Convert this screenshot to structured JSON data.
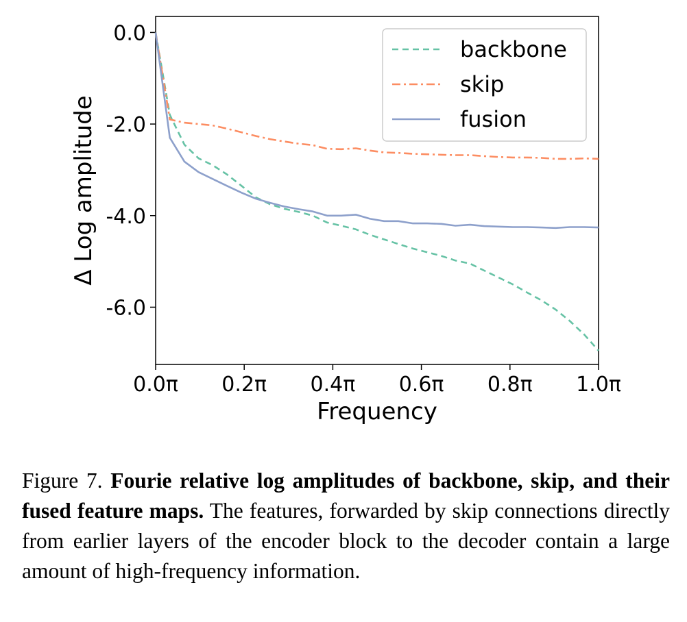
{
  "chart_data": {
    "type": "line",
    "xlabel": "Frequency",
    "ylabel": "Δ Log amplitude",
    "xlim": [
      0.0,
      1.0
    ],
    "ylim": [
      -7.25,
      0.35
    ],
    "x_ticks": [
      {
        "value": 0.0,
        "label": "0.0π"
      },
      {
        "value": 0.2,
        "label": "0.2π"
      },
      {
        "value": 0.4,
        "label": "0.4π"
      },
      {
        "value": 0.6,
        "label": "0.6π"
      },
      {
        "value": 0.8,
        "label": "0.8π"
      },
      {
        "value": 1.0,
        "label": "1.0π"
      }
    ],
    "y_ticks": [
      {
        "value": 0.0,
        "label": "0.0"
      },
      {
        "value": -2.0,
        "label": "-2.0"
      },
      {
        "value": -4.0,
        "label": "-4.0"
      },
      {
        "value": -6.0,
        "label": "-6.0"
      }
    ],
    "grid": false,
    "legend_position": "top-right",
    "x": [
      0.0,
      0.032,
      0.065,
      0.097,
      0.129,
      0.161,
      0.194,
      0.226,
      0.258,
      0.29,
      0.323,
      0.355,
      0.387,
      0.419,
      0.452,
      0.484,
      0.516,
      0.548,
      0.581,
      0.613,
      0.645,
      0.677,
      0.71,
      0.742,
      0.774,
      0.806,
      0.839,
      0.871,
      0.903,
      0.935,
      0.968,
      1.0
    ],
    "series": [
      {
        "name": "backbone",
        "color": "#66c2a5",
        "style": "dashed",
        "values": [
          0.0,
          -1.8,
          -2.45,
          -2.75,
          -2.9,
          -3.1,
          -3.35,
          -3.6,
          -3.75,
          -3.85,
          -3.92,
          -4.0,
          -4.15,
          -4.22,
          -4.3,
          -4.42,
          -4.52,
          -4.62,
          -4.72,
          -4.8,
          -4.88,
          -4.98,
          -5.05,
          -5.2,
          -5.35,
          -5.5,
          -5.68,
          -5.85,
          -6.05,
          -6.3,
          -6.6,
          -6.95
        ]
      },
      {
        "name": "skip",
        "color": "#fc8d62",
        "style": "dashdot",
        "values": [
          0.0,
          -1.9,
          -1.97,
          -2.0,
          -2.03,
          -2.1,
          -2.18,
          -2.26,
          -2.33,
          -2.38,
          -2.43,
          -2.46,
          -2.54,
          -2.55,
          -2.53,
          -2.58,
          -2.62,
          -2.63,
          -2.65,
          -2.66,
          -2.67,
          -2.68,
          -2.68,
          -2.7,
          -2.72,
          -2.73,
          -2.73,
          -2.74,
          -2.76,
          -2.76,
          -2.75,
          -2.76
        ]
      },
      {
        "name": "fusion",
        "color": "#8da0cb",
        "style": "solid",
        "values": [
          0.0,
          -2.3,
          -2.82,
          -3.05,
          -3.2,
          -3.35,
          -3.5,
          -3.63,
          -3.72,
          -3.8,
          -3.86,
          -3.91,
          -4.0,
          -4.0,
          -3.98,
          -4.07,
          -4.12,
          -4.12,
          -4.17,
          -4.17,
          -4.18,
          -4.22,
          -4.2,
          -4.23,
          -4.24,
          -4.25,
          -4.25,
          -4.26,
          -4.27,
          -4.25,
          -4.25,
          -4.26
        ]
      }
    ]
  },
  "caption": {
    "label": "Figure 7.",
    "bold": "Fourie relative log amplitudes of backbone, skip, and their fused feature maps.",
    "text": "The features, forwarded by skip connections directly from earlier layers of the encoder block to the decoder contain a large amount of high-frequency information."
  }
}
